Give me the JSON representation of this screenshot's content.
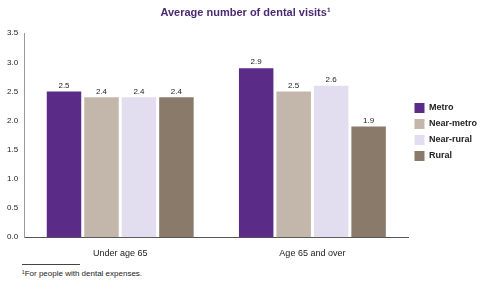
{
  "chart_data": {
    "type": "bar",
    "title": "Average number of dental visits¹",
    "footnote": "¹For people with dental expenses.",
    "categories": [
      "Under age 65",
      "Age 65 and over"
    ],
    "series": [
      {
        "name": "Metro",
        "color": "#5b2c87",
        "values": [
          2.5,
          2.9
        ]
      },
      {
        "name": "Near-metro",
        "color": "#c3b7ab",
        "values": [
          2.4,
          2.5
        ]
      },
      {
        "name": "Near-rural",
        "color": "#e2deef",
        "values": [
          2.4,
          2.6
        ]
      },
      {
        "name": "Rural",
        "color": "#8a7a6a",
        "values": [
          2.4,
          1.9
        ]
      }
    ],
    "ylim": [
      0,
      3.5
    ],
    "yticks": [
      {
        "value": 0,
        "label": "0.0"
      },
      0.5,
      {
        "value": 1,
        "label": "1.0"
      },
      1.5,
      {
        "value": 2,
        "label": "2.0"
      },
      2.5,
      {
        "value": 3,
        "label": "3.0"
      },
      3.5
    ],
    "grid": false,
    "legend": "right",
    "data_labels": true
  }
}
